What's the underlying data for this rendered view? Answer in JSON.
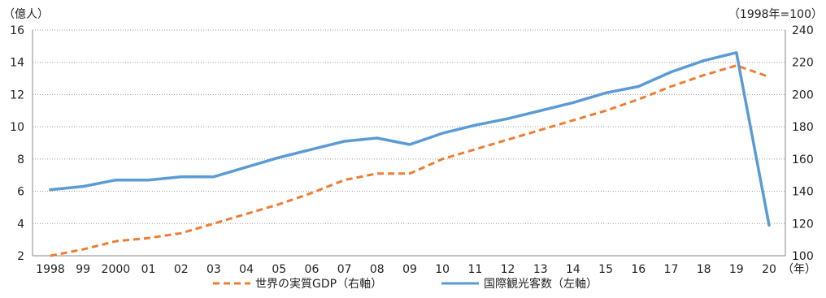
{
  "chart_data": {
    "type": "line",
    "left_axis_unit": "（億人）",
    "right_axis_unit": "（1998年=100）",
    "x_axis_unit": "（年）",
    "categories": [
      "1998",
      "99",
      "2000",
      "01",
      "02",
      "03",
      "04",
      "05",
      "06",
      "07",
      "08",
      "09",
      "10",
      "11",
      "12",
      "13",
      "14",
      "15",
      "16",
      "17",
      "18",
      "19",
      "20"
    ],
    "left_axis": {
      "min": 2,
      "max": 16,
      "ticks": [
        "2",
        "4",
        "6",
        "8",
        "10",
        "12",
        "14",
        "16"
      ]
    },
    "right_axis": {
      "min": 100,
      "max": 240,
      "ticks": [
        "100",
        "120",
        "140",
        "160",
        "180",
        "200",
        "220",
        "240"
      ]
    },
    "grid": true,
    "legend_position": "bottom",
    "series": [
      {
        "name": "世界の実質GDP（右軸）",
        "axis": "right",
        "style": "dashed",
        "color": "#ed7d31",
        "values": [
          100,
          104,
          109,
          111,
          114,
          120,
          126,
          132,
          139,
          147,
          151,
          151,
          160,
          166,
          172,
          178,
          184,
          190,
          197,
          205,
          212,
          218,
          211
        ]
      },
      {
        "name": "国際観光客数（左軸）",
        "axis": "left",
        "style": "solid",
        "color": "#5b9bd5",
        "values": [
          6.1,
          6.3,
          6.7,
          6.7,
          6.9,
          6.9,
          7.5,
          8.1,
          8.6,
          9.1,
          9.3,
          8.9,
          9.6,
          10.1,
          10.5,
          11.0,
          11.5,
          12.1,
          12.5,
          13.4,
          14.1,
          14.6,
          3.9
        ]
      }
    ]
  }
}
